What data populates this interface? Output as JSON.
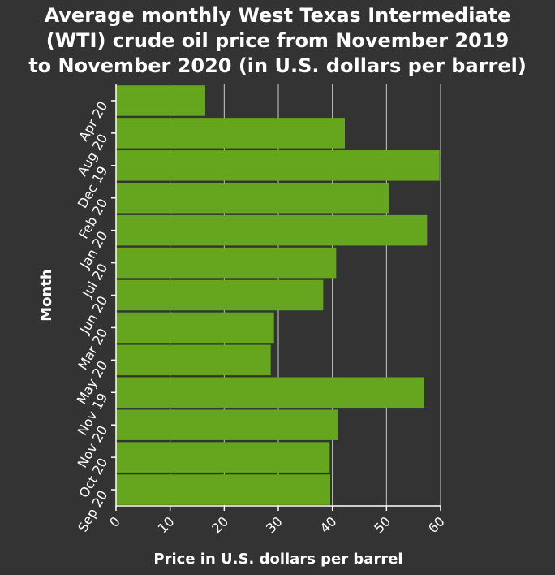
{
  "chart_data": {
    "type": "bar",
    "orientation": "horizontal",
    "title": "Average monthly West Texas Intermediate (WTI) crude oil price from November 2019 to November 2020 (in U.S. dollars per barrel)",
    "title_lines": [
      "Average monthly West Texas Intermediate",
      "(WTI) crude oil price from November 2019",
      "to November 2020 (in U.S. dollars per barrel)"
    ],
    "xlabel": "Price in U.S. dollars per barrel",
    "ylabel": "Month",
    "categories": [
      "Apr 20",
      "Aug 20",
      "Dec 19",
      "Feb 20",
      "Jan 20",
      "Jul 20",
      "Jun 20",
      "Mar 20",
      "May 20",
      "Nov 19",
      "Nov 20",
      "Oct 20",
      "Sep 20"
    ],
    "values": [
      16.5,
      42.3,
      59.8,
      50.5,
      57.5,
      40.7,
      38.3,
      29.2,
      28.6,
      57.0,
      41.0,
      39.5,
      39.6
    ],
    "xlim": [
      0,
      60
    ],
    "xticks": [
      0,
      10,
      20,
      30,
      40,
      50,
      60
    ],
    "grid": true,
    "legend": "none",
    "colors": {
      "background": "#333333",
      "bar": "#66a61e",
      "grid": "#cccccc",
      "text": "#ffffff"
    }
  }
}
